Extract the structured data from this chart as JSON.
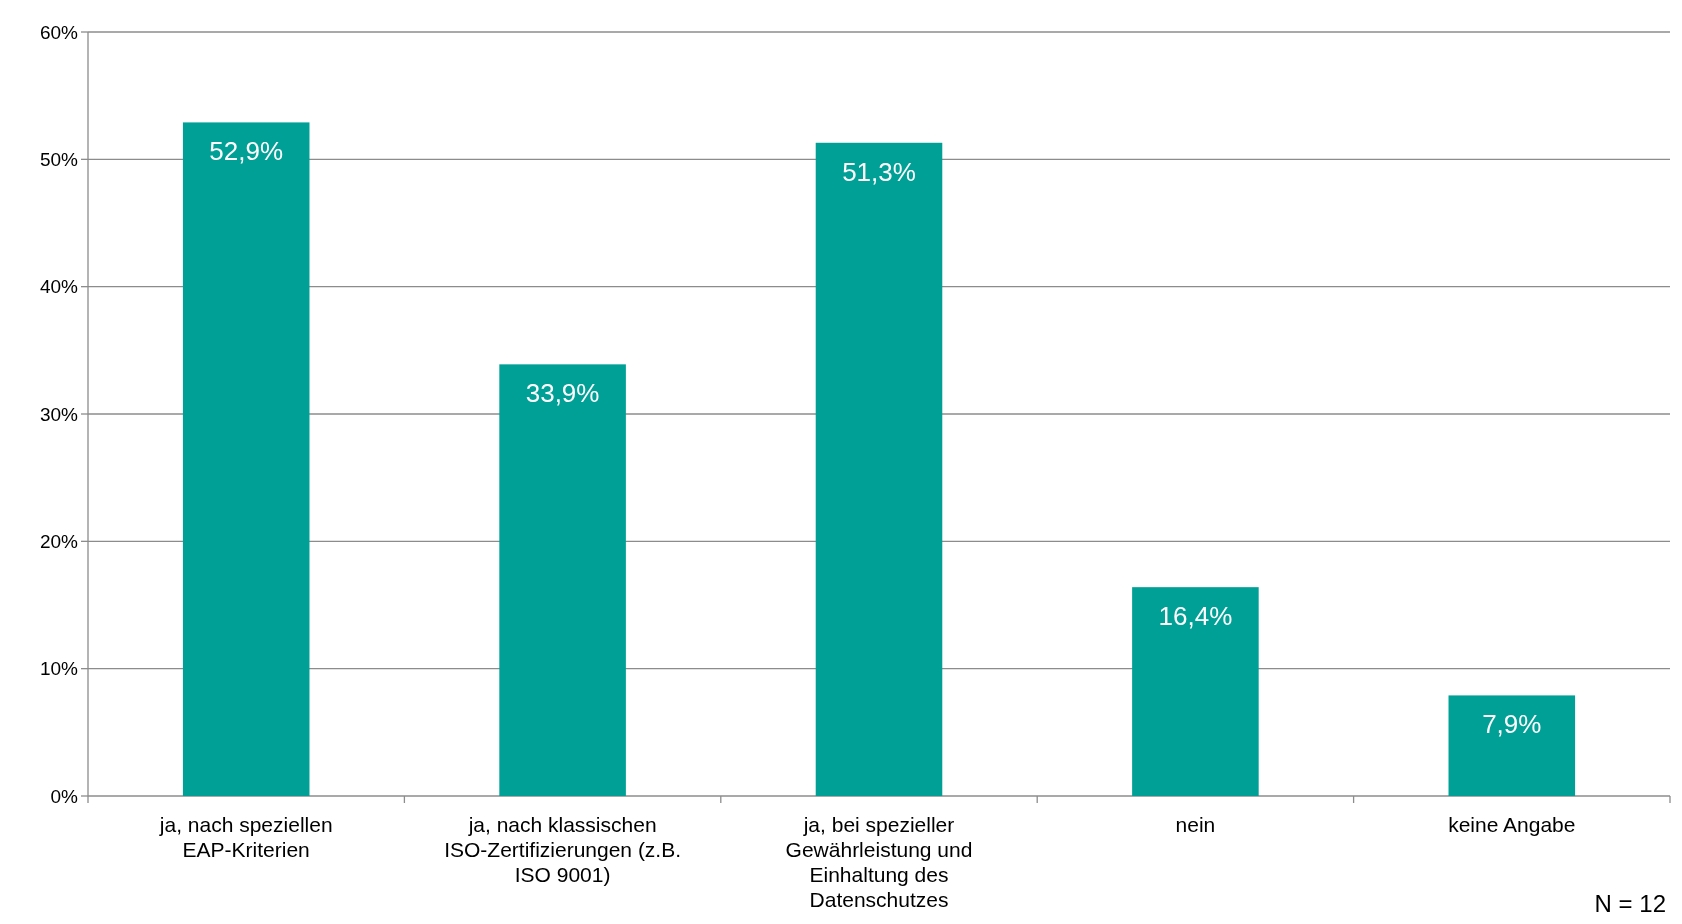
{
  "chart_data": {
    "type": "bar",
    "categories": [
      "ja, nach speziellen EAP-Kriterien",
      "ja, nach klassischen ISO-Zertifizierungen (z.B. ISO 9001)",
      "ja, bei spezieller Gewährleistung und Einhaltung des Datenschutzes",
      "nein",
      "keine Angabe"
    ],
    "values": [
      52.9,
      33.9,
      51.3,
      16.4,
      7.9
    ],
    "value_labels": [
      "52,9%",
      "33,9%",
      "51,3%",
      "16,4%",
      "7,9%"
    ],
    "color": "#00a096",
    "ylim": [
      0,
      60
    ],
    "yticks": [
      {
        "value": 0,
        "label": "0%"
      },
      {
        "value": 10,
        "label": "10%"
      },
      {
        "value": 20,
        "label": "20%"
      },
      {
        "value": 30,
        "label": "30%"
      },
      {
        "value": 40,
        "label": "40%"
      },
      {
        "value": 50,
        "label": "50%"
      },
      {
        "value": 60,
        "label": "60%"
      }
    ],
    "grid": "y",
    "annotations": [
      "N = 12"
    ]
  }
}
